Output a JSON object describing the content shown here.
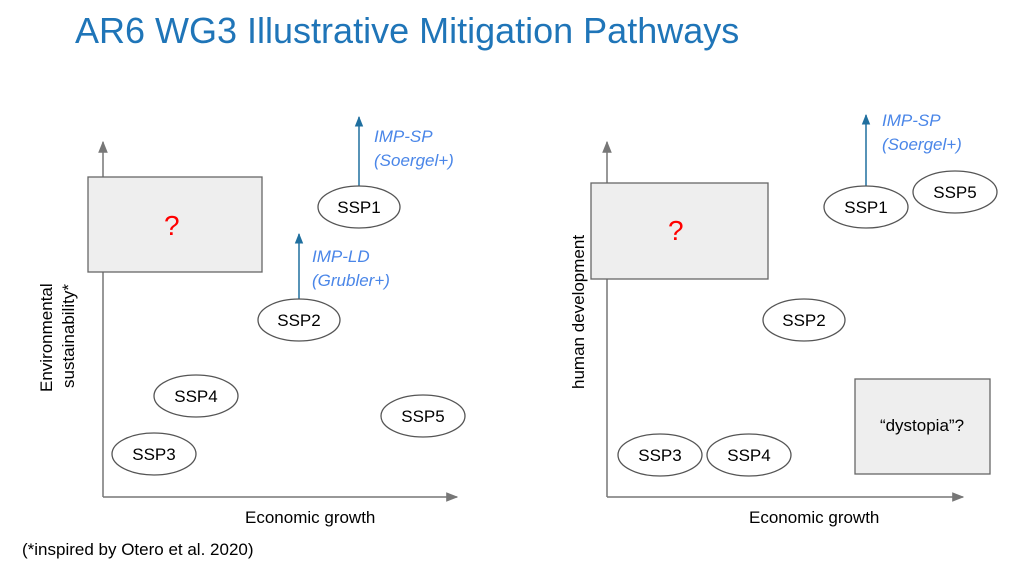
{
  "title": "AR6 WG3 Illustrative Mitigation Pathways",
  "footnote": "(*inspired by Otero et al. 2020)",
  "left_panel": {
    "y_axis_label_line1": "Environmental",
    "y_axis_label_line2": "sustainability*",
    "x_axis_label": "Economic growth",
    "question_mark": "?",
    "ssp1": "SSP1",
    "ssp2": "SSP2",
    "ssp3": "SSP3",
    "ssp4": "SSP4",
    "ssp5": "SSP5",
    "imp_sp_line1": "IMP-SP",
    "imp_sp_line2": "(Soergel+)",
    "imp_ld_line1": "IMP-LD",
    "imp_ld_line2": "(Grubler+)"
  },
  "right_panel": {
    "y_axis_label": "human development",
    "x_axis_label": "Economic growth",
    "question_mark": "?",
    "ssp1": "SSP1",
    "ssp2": "SSP2",
    "ssp3": "SSP3",
    "ssp4": "SSP4",
    "ssp5": "SSP5",
    "imp_sp_line1": "IMP-SP",
    "imp_sp_line2": "(Soergel+)",
    "dystopia": "“dystopia”?"
  },
  "colors": {
    "title": "#1f75b8",
    "imp_text": "#4a86e8",
    "arrow": "#1f6f9f",
    "question_mark": "#ff0000"
  }
}
